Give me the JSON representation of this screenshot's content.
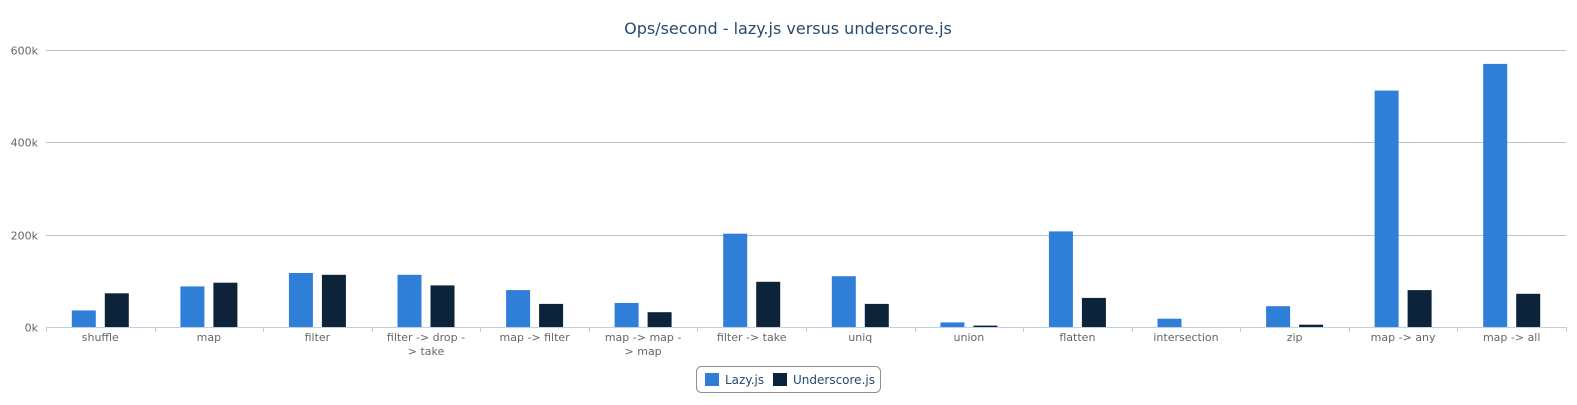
{
  "chart_data": {
    "type": "bar",
    "title": "Ops/second - lazy.js versus underscore.js",
    "xlabel": "",
    "ylabel": "",
    "ylim": [
      0,
      600000
    ],
    "y_ticks": [
      "0k",
      "200k",
      "400k",
      "600k"
    ],
    "grid": true,
    "legend_position": "bottom-center",
    "categories": [
      [
        "shuffle"
      ],
      [
        "map"
      ],
      [
        "filter"
      ],
      [
        "filter -> drop -",
        "> take"
      ],
      [
        "map -> filter"
      ],
      [
        "map -> map -",
        "> map"
      ],
      [
        "filter -> take"
      ],
      [
        "uniq"
      ],
      [
        "union"
      ],
      [
        "flatten"
      ],
      [
        "intersection"
      ],
      [
        "zip"
      ],
      [
        "map -> any"
      ],
      [
        "map -> all"
      ]
    ],
    "series": [
      {
        "name": "Lazy.js",
        "color": "#2f7ed8",
        "values": [
          36000,
          88000,
          117000,
          113000,
          80000,
          52000,
          202000,
          110000,
          10000,
          207000,
          18000,
          45000,
          512000,
          570000
        ]
      },
      {
        "name": "Underscore.js",
        "color": "#0d233a",
        "values": [
          73000,
          96000,
          113000,
          90000,
          50000,
          32000,
          98000,
          50000,
          3000,
          63000,
          0,
          5000,
          80000,
          72000
        ]
      }
    ]
  }
}
